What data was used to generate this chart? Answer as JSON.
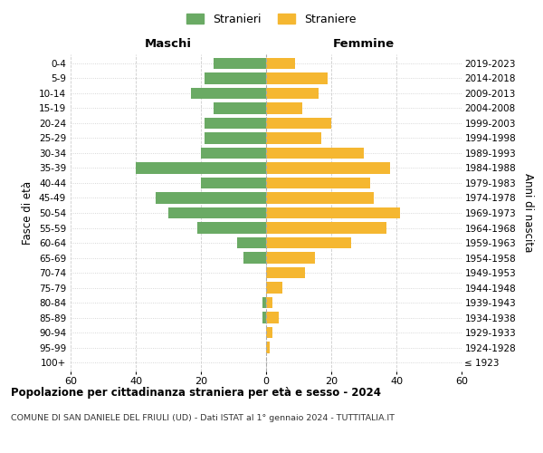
{
  "age_groups": [
    "100+",
    "95-99",
    "90-94",
    "85-89",
    "80-84",
    "75-79",
    "70-74",
    "65-69",
    "60-64",
    "55-59",
    "50-54",
    "45-49",
    "40-44",
    "35-39",
    "30-34",
    "25-29",
    "20-24",
    "15-19",
    "10-14",
    "5-9",
    "0-4"
  ],
  "birth_years": [
    "≤ 1923",
    "1924-1928",
    "1929-1933",
    "1934-1938",
    "1939-1943",
    "1944-1948",
    "1949-1953",
    "1954-1958",
    "1959-1963",
    "1964-1968",
    "1969-1973",
    "1974-1978",
    "1979-1983",
    "1984-1988",
    "1989-1993",
    "1994-1998",
    "1999-2003",
    "2004-2008",
    "2009-2013",
    "2014-2018",
    "2019-2023"
  ],
  "maschi": [
    0,
    0,
    0,
    1,
    1,
    0,
    0,
    7,
    9,
    21,
    30,
    34,
    20,
    40,
    20,
    19,
    19,
    16,
    23,
    19,
    16
  ],
  "femmine": [
    0,
    1,
    2,
    4,
    2,
    5,
    12,
    15,
    26,
    37,
    41,
    33,
    32,
    38,
    30,
    17,
    20,
    11,
    16,
    19,
    9
  ],
  "color_maschi": "#6aaa64",
  "color_femmine": "#f5b731",
  "title": "Popolazione per cittadinanza straniera per età e sesso - 2024",
  "subtitle": "COMUNE DI SAN DANIELE DEL FRIULI (UD) - Dati ISTAT al 1° gennaio 2024 - TUTTITALIA.IT",
  "xlabel_left": "Maschi",
  "xlabel_right": "Femmine",
  "ylabel_left": "Fasce di età",
  "ylabel_right": "Anni di nascita",
  "legend_maschi": "Stranieri",
  "legend_femmine": "Straniere",
  "xlim": 60,
  "background_color": "#ffffff",
  "grid_color": "#cccccc"
}
